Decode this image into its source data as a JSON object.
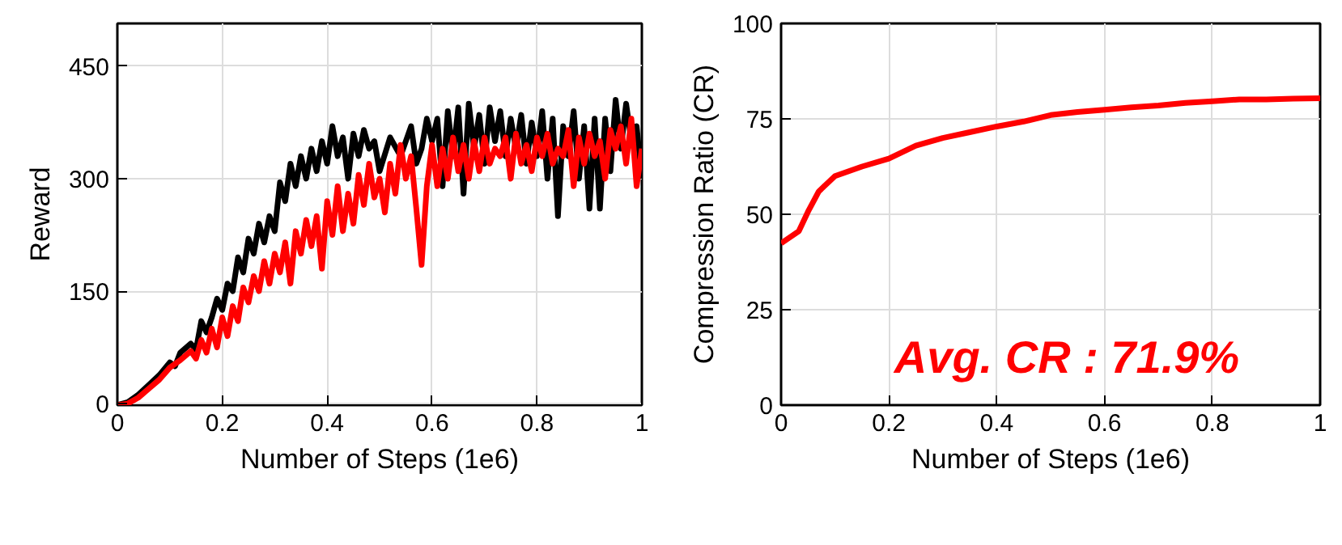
{
  "chart_data": [
    {
      "type": "line",
      "xlabel": "Number of Steps (1e6)",
      "ylabel": "Reward",
      "xlim": [
        0,
        1
      ],
      "ylim": [
        -2,
        507
      ],
      "xticks": [
        0,
        0.2,
        0.4,
        0.6,
        0.8,
        1
      ],
      "yticks": [
        0,
        150,
        300,
        450
      ],
      "grid": true,
      "x": [
        0,
        0.02,
        0.04,
        0.06,
        0.08,
        0.1,
        0.11,
        0.12,
        0.14,
        0.15,
        0.16,
        0.17,
        0.18,
        0.19,
        0.2,
        0.21,
        0.22,
        0.23,
        0.24,
        0.25,
        0.26,
        0.27,
        0.28,
        0.29,
        0.3,
        0.31,
        0.32,
        0.33,
        0.34,
        0.35,
        0.36,
        0.37,
        0.38,
        0.39,
        0.4,
        0.41,
        0.42,
        0.43,
        0.44,
        0.45,
        0.46,
        0.47,
        0.48,
        0.49,
        0.5,
        0.52,
        0.54,
        0.56,
        0.57,
        0.58,
        0.59,
        0.6,
        0.61,
        0.62,
        0.63,
        0.64,
        0.65,
        0.66,
        0.67,
        0.68,
        0.69,
        0.7,
        0.71,
        0.72,
        0.73,
        0.74,
        0.75,
        0.76,
        0.77,
        0.78,
        0.79,
        0.8,
        0.81,
        0.82,
        0.83,
        0.84,
        0.85,
        0.86,
        0.87,
        0.88,
        0.89,
        0.9,
        0.91,
        0.92,
        0.93,
        0.94,
        0.95,
        0.96,
        0.97,
        0.98,
        0.99,
        1.0
      ],
      "series": [
        {
          "color": "#000000",
          "values": [
            -2,
            2,
            12,
            25,
            38,
            55,
            50,
            68,
            80,
            72,
            110,
            95,
            115,
            140,
            125,
            160,
            150,
            195,
            175,
            220,
            200,
            240,
            215,
            250,
            230,
            295,
            270,
            320,
            290,
            330,
            300,
            340,
            310,
            350,
            320,
            370,
            330,
            355,
            300,
            360,
            330,
            365,
            340,
            350,
            310,
            355,
            330,
            370,
            320,
            340,
            380,
            350,
            380,
            290,
            390,
            330,
            395,
            280,
            400,
            340,
            385,
            320,
            395,
            350,
            390,
            330,
            380,
            340,
            385,
            320,
            375,
            330,
            390,
            300,
            380,
            250,
            370,
            330,
            390,
            300,
            370,
            260,
            380,
            260,
            380,
            310,
            405,
            340,
            400,
            350,
            370,
            300
          ]
        },
        {
          "color": "#ff0000",
          "x": [
            0,
            0.02,
            0.04,
            0.06,
            0.08,
            0.1,
            0.12,
            0.14,
            0.15,
            0.16,
            0.17,
            0.18,
            0.19,
            0.2,
            0.21,
            0.22,
            0.23,
            0.24,
            0.25,
            0.26,
            0.27,
            0.28,
            0.29,
            0.3,
            0.31,
            0.32,
            0.33,
            0.34,
            0.35,
            0.36,
            0.37,
            0.38,
            0.39,
            0.4,
            0.41,
            0.42,
            0.43,
            0.44,
            0.45,
            0.46,
            0.47,
            0.48,
            0.49,
            0.5,
            0.51,
            0.52,
            0.53,
            0.54,
            0.55,
            0.56,
            0.57,
            0.58,
            0.59,
            0.6,
            0.61,
            0.62,
            0.63,
            0.64,
            0.65,
            0.66,
            0.67,
            0.68,
            0.69,
            0.7,
            0.71,
            0.72,
            0.73,
            0.74,
            0.75,
            0.76,
            0.77,
            0.78,
            0.79,
            0.8,
            0.81,
            0.82,
            0.83,
            0.84,
            0.85,
            0.86,
            0.87,
            0.88,
            0.89,
            0.9,
            0.91,
            0.92,
            0.93,
            0.94,
            0.95,
            0.96,
            0.97,
            0.98,
            0.99,
            1.0
          ],
          "values": [
            -2,
            0,
            8,
            20,
            32,
            48,
            58,
            70,
            60,
            85,
            68,
            100,
            75,
            115,
            90,
            130,
            110,
            155,
            135,
            170,
            150,
            190,
            160,
            200,
            175,
            215,
            160,
            230,
            200,
            245,
            210,
            250,
            180,
            270,
            225,
            290,
            230,
            280,
            240,
            305,
            265,
            320,
            275,
            300,
            255,
            320,
            280,
            345,
            300,
            330,
            260,
            185,
            290,
            345,
            290,
            340,
            300,
            355,
            310,
            345,
            300,
            350,
            310,
            355,
            320,
            340,
            330,
            355,
            300,
            360,
            320,
            345,
            310,
            355,
            330,
            360,
            320,
            340,
            330,
            365,
            290,
            355,
            320,
            360,
            330,
            350,
            300,
            365,
            340,
            370,
            320,
            380,
            290,
            340
          ]
        }
      ]
    },
    {
      "type": "line",
      "xlabel": "Number of Steps (1e6)",
      "ylabel": "Compression Ratio (CR)",
      "xlim": [
        0,
        1
      ],
      "ylim": [
        0,
        100
      ],
      "xticks": [
        0,
        0.2,
        0.4,
        0.6,
        0.8,
        1
      ],
      "yticks": [
        0,
        25,
        50,
        75,
        100
      ],
      "grid": true,
      "annotations": [
        "Avg. CR : 71.9%"
      ],
      "x": [
        0,
        0.033,
        0.05,
        0.07,
        0.1,
        0.15,
        0.2,
        0.25,
        0.3,
        0.35,
        0.4,
        0.45,
        0.5,
        0.55,
        0.6,
        0.65,
        0.7,
        0.75,
        0.8,
        0.85,
        0.9,
        0.95,
        1.0
      ],
      "series": [
        {
          "color": "#ff0000",
          "values": [
            42.4,
            45.6,
            50.7,
            56,
            60,
            62.5,
            64.6,
            68,
            70,
            71.5,
            73,
            74.3,
            76,
            76.8,
            77.4,
            78,
            78.5,
            79.2,
            79.6,
            80.1,
            80.1,
            80.3,
            80.4
          ]
        }
      ]
    }
  ]
}
